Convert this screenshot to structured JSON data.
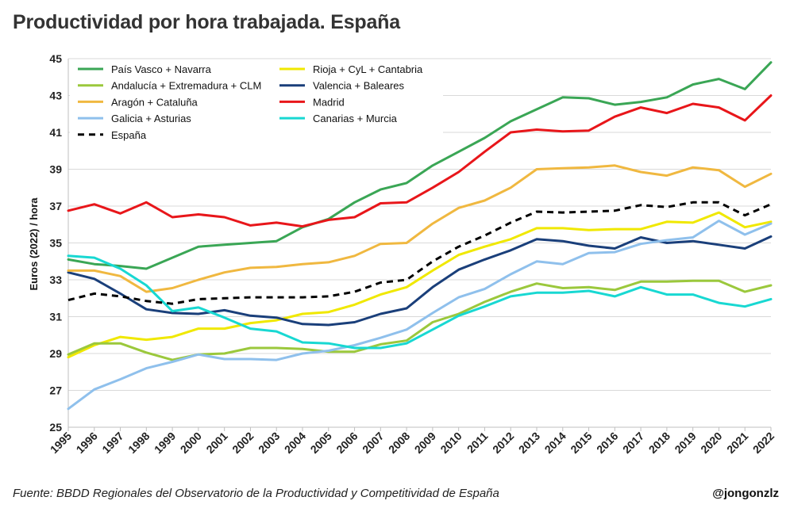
{
  "title": "Productividad por hora trabajada. España",
  "source": "Fuente: BBDD Regionales del Observatorio de la Productividad y Competitividad de España",
  "handle": "@jongonzlz",
  "chart_data": {
    "type": "line",
    "ylabel": "Euros (2022) / hora",
    "xlabel": "",
    "ylim": [
      25,
      45
    ],
    "yticks": [
      25,
      27,
      29,
      31,
      33,
      35,
      37,
      39,
      41,
      43,
      45
    ],
    "grid": "horizontal",
    "legend_position": "top-left",
    "x": [
      "1995",
      "1996",
      "1997",
      "1998",
      "1999",
      "2000",
      "2001",
      "2002",
      "2003",
      "2004",
      "2005",
      "2006",
      "2007",
      "2008",
      "2009",
      "2010",
      "2011",
      "2012",
      "2013",
      "2014",
      "2015",
      "2016",
      "2017",
      "2018",
      "2019",
      "2020",
      "2021",
      "2022"
    ],
    "series": [
      {
        "name": "País Vasco + Navarra",
        "color": "#3aa655",
        "dash": "solid",
        "values": [
          34.1,
          33.85,
          33.75,
          33.6,
          34.2,
          34.8,
          34.9,
          35.0,
          35.1,
          35.85,
          36.3,
          37.2,
          37.9,
          38.25,
          39.2,
          39.95,
          40.7,
          41.6,
          42.25,
          42.9,
          42.85,
          42.5,
          42.65,
          42.9,
          43.6,
          43.9,
          43.35,
          44.8
        ]
      },
      {
        "name": "Rioja + CyL + Cantabria",
        "color": "#f0e800",
        "dash": "solid",
        "values": [
          28.8,
          29.45,
          29.9,
          29.75,
          29.9,
          30.35,
          30.35,
          30.65,
          30.8,
          31.15,
          31.25,
          31.65,
          32.2,
          32.6,
          33.5,
          34.35,
          34.8,
          35.2,
          35.8,
          35.8,
          35.7,
          35.75,
          35.75,
          36.15,
          36.1,
          36.65,
          35.85,
          36.15
        ]
      },
      {
        "name": "Andalucía + Extremadura + CLM",
        "color": "#9bc83c",
        "dash": "solid",
        "values": [
          28.95,
          29.55,
          29.55,
          29.05,
          28.65,
          28.95,
          29.0,
          29.3,
          29.3,
          29.25,
          29.1,
          29.1,
          29.5,
          29.7,
          30.7,
          31.15,
          31.8,
          32.35,
          32.8,
          32.55,
          32.6,
          32.45,
          32.9,
          32.9,
          32.95,
          32.95,
          32.35,
          32.7
        ]
      },
      {
        "name": "Valencia + Baleares",
        "color": "#1a3f7a",
        "dash": "solid",
        "values": [
          33.4,
          33.05,
          32.25,
          31.4,
          31.2,
          31.15,
          31.35,
          31.05,
          30.95,
          30.6,
          30.55,
          30.7,
          31.15,
          31.45,
          32.6,
          33.55,
          34.1,
          34.6,
          35.2,
          35.1,
          34.85,
          34.7,
          35.3,
          35.0,
          35.1,
          34.9,
          34.7,
          35.35
        ]
      },
      {
        "name": "Aragón + Cataluña",
        "color": "#f0b840",
        "dash": "solid",
        "values": [
          33.5,
          33.5,
          33.2,
          32.35,
          32.55,
          33.0,
          33.4,
          33.65,
          33.7,
          33.85,
          33.95,
          34.3,
          34.95,
          35.0,
          36.05,
          36.9,
          37.3,
          38.0,
          39.0,
          39.05,
          39.1,
          39.2,
          38.85,
          38.65,
          39.1,
          38.95,
          38.05,
          38.75
        ]
      },
      {
        "name": "Madrid",
        "color": "#e8161a",
        "dash": "solid",
        "values": [
          36.75,
          37.1,
          36.6,
          37.2,
          36.4,
          36.55,
          36.4,
          35.95,
          36.1,
          35.9,
          36.25,
          36.4,
          37.15,
          37.2,
          38.0,
          38.85,
          39.95,
          41.0,
          41.15,
          41.05,
          41.1,
          41.85,
          42.35,
          42.05,
          42.55,
          42.35,
          41.65,
          43.0
        ]
      },
      {
        "name": "Galicia + Asturias",
        "color": "#8fc0ec",
        "dash": "solid",
        "values": [
          26.0,
          27.05,
          27.6,
          28.2,
          28.55,
          28.95,
          28.7,
          28.7,
          28.65,
          29.0,
          29.15,
          29.45,
          29.85,
          30.3,
          31.2,
          32.05,
          32.5,
          33.3,
          34.0,
          33.85,
          34.45,
          34.5,
          34.95,
          35.15,
          35.3,
          36.2,
          35.45,
          36.05
        ]
      },
      {
        "name": "Canarias + Murcia",
        "color": "#18d8d2",
        "dash": "solid",
        "values": [
          34.3,
          34.2,
          33.6,
          32.7,
          31.3,
          31.5,
          30.95,
          30.35,
          30.2,
          29.6,
          29.55,
          29.3,
          29.3,
          29.55,
          30.3,
          31.05,
          31.55,
          32.1,
          32.3,
          32.3,
          32.4,
          32.1,
          32.6,
          32.2,
          32.2,
          31.75,
          31.55,
          31.95
        ]
      },
      {
        "name": "España",
        "color": "#000000",
        "dash": "dashed",
        "values": [
          31.9,
          32.25,
          32.1,
          31.85,
          31.7,
          31.95,
          32.0,
          32.05,
          32.05,
          32.05,
          32.1,
          32.35,
          32.85,
          33.0,
          34.0,
          34.8,
          35.4,
          36.1,
          36.7,
          36.65,
          36.7,
          36.75,
          37.05,
          36.95,
          37.2,
          37.2,
          36.5,
          37.1
        ]
      }
    ]
  }
}
